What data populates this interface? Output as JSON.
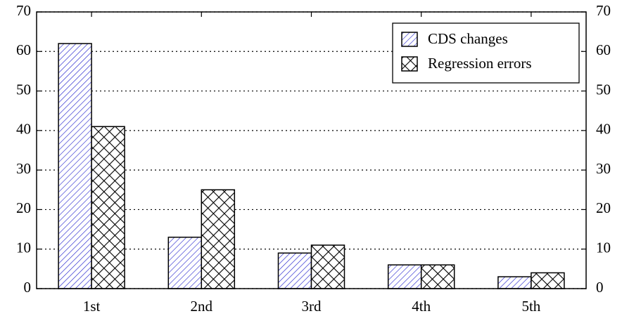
{
  "chart_data": {
    "type": "bar",
    "categories": [
      "1st",
      "2nd",
      "3rd",
      "4th",
      "5th"
    ],
    "series": [
      {
        "name": "CDS changes",
        "color": "#1a1acc",
        "pattern": "hatch",
        "values": [
          62,
          13,
          9,
          6,
          3
        ]
      },
      {
        "name": "Regression errors",
        "color": "#000000",
        "pattern": "crosshatch",
        "values": [
          41,
          25,
          11,
          6,
          4
        ]
      }
    ],
    "ylim": [
      0,
      70
    ],
    "yticks": [
      0,
      10,
      20,
      30,
      40,
      50,
      60,
      70
    ],
    "y2lim": [
      0,
      70
    ],
    "y2ticks": [
      0,
      10,
      20,
      30,
      40,
      50,
      60,
      70
    ],
    "grid": true,
    "legend": "upper right"
  }
}
